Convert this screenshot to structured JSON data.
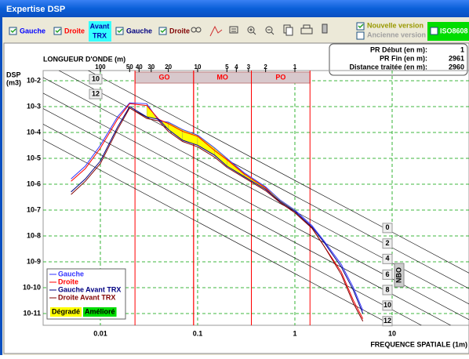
{
  "window": {
    "title": "Expertise DSP"
  },
  "toolbar": {
    "current": [
      "Gauche",
      "Droite"
    ],
    "before_badge": [
      "Avant",
      "TRX"
    ],
    "before": [
      "Gauche",
      "Droite"
    ],
    "options": [
      "Nouvelle version",
      "Ancienne version"
    ],
    "iso": "ISO8608"
  },
  "info": {
    "rows": [
      {
        "label": "PR Début (en m):",
        "value": 1
      },
      {
        "label": "PR Fin (en m):",
        "value": 2961
      },
      {
        "label": "Distance traitée (en m):",
        "value": 2960
      }
    ]
  },
  "chart_data": {
    "type": "line",
    "x_scale": "log",
    "y_scale": "log",
    "xlabel": "FREQUENCE SPATIALE (1m)",
    "ylabel": [
      "DSP",
      "(m3)"
    ],
    "x2label": "LONGUEUR D'ONDE (m)",
    "xlim": [
      0.00258,
      61.7
    ],
    "ylim": [
      3.51e-12,
      0.0248
    ],
    "xticks": [
      0.01,
      0.1,
      1,
      10
    ],
    "yticks": [
      {
        "value": 0.01,
        "label": "10-2"
      },
      {
        "value": 0.001,
        "label": "10-3"
      },
      {
        "value": 0.0001,
        "label": "10-4"
      },
      {
        "value": 1e-05,
        "label": "10-5"
      },
      {
        "value": 1e-06,
        "label": "10-6"
      },
      {
        "value": 1e-07,
        "label": "10-7"
      },
      {
        "value": 1e-08,
        "label": "10-8"
      },
      {
        "value": 1e-09,
        "label": "10-9"
      },
      {
        "value": 1e-10,
        "label": "10-10"
      },
      {
        "value": 1e-11,
        "label": "10-11"
      }
    ],
    "x2ticks": [
      100,
      50,
      40,
      30,
      20,
      10,
      5,
      4,
      3,
      2,
      1
    ],
    "grid": true,
    "legend": "lower left",
    "x": [
      0.005,
      0.007,
      0.01,
      0.015,
      0.02,
      0.03,
      0.04,
      0.05,
      0.07,
      0.1,
      0.15,
      0.2,
      0.3,
      0.5,
      0.7,
      1,
      1.5,
      2,
      3,
      4,
      5
    ],
    "series": [
      {
        "name": "Gauche",
        "color": "#3333ff",
        "values": [
          1.6e-06,
          5e-06,
          3.2e-05,
          0.0004,
          0.0014,
          0.0013,
          0.00028,
          0.00025,
          0.00013,
          7.9e-05,
          2.5e-05,
          1e-05,
          2.8e-06,
          7.9e-07,
          2.5e-07,
          1e-07,
          2.5e-08,
          6.3e-09,
          7.9e-10,
          1e-10,
          1.3e-11
        ]
      },
      {
        "name": "Droite",
        "color": "#ff0000",
        "values": [
          1.3e-06,
          4e-06,
          2.5e-05,
          0.00032,
          0.0013,
          0.0011,
          0.00032,
          0.00022,
          0.00011,
          7.1e-05,
          2e-05,
          8.9e-06,
          2.5e-06,
          7.1e-07,
          2e-07,
          7.9e-08,
          2e-08,
          4e-09,
          4e-10,
          3.2e-11,
          6.3e-12
        ]
      },
      {
        "name": "Gauche Avant TRX",
        "color": "#000080",
        "values": [
          5e-07,
          1.6e-06,
          7.9e-06,
          0.00016,
          0.001,
          0.0004,
          0.00032,
          0.00013,
          5e-05,
          3.2e-05,
          1.3e-05,
          5e-06,
          2e-06,
          6.3e-07,
          2.2e-07,
          8.9e-08,
          2.2e-08,
          5.6e-09,
          6.3e-10,
          7.9e-11,
          1e-11
        ]
      },
      {
        "name": "Droite Avant TRX",
        "color": "#800000",
        "values": [
          4e-07,
          1.3e-06,
          6.3e-06,
          0.00013,
          0.00089,
          0.00035,
          0.00028,
          0.00011,
          4.5e-05,
          2.8e-05,
          1.1e-05,
          4.5e-06,
          1.8e-06,
          5.6e-07,
          2e-07,
          7.9e-08,
          2e-08,
          4e-09,
          3.2e-10,
          2.5e-11,
          5e-12
        ]
      }
    ],
    "fills": [
      {
        "name": "Dégradé",
        "color": "#ffff00"
      },
      {
        "name": "Amélioré",
        "color": "#00dd00"
      }
    ],
    "bands": [
      {
        "label": "GO",
        "from": 0.0227,
        "to": 0.0909
      },
      {
        "label": "MO",
        "from": 0.0909,
        "to": 0.357
      },
      {
        "label": "PO",
        "from": 0.357,
        "to": 1.43
      }
    ],
    "iso_lines": [
      {
        "label": "0",
        "value": 1.4e-06
      },
      {
        "label": "2",
        "value": 3.5e-07
      },
      {
        "label": "4",
        "value": 8.9e-08
      },
      {
        "label": "6",
        "value": 2.2e-08
      },
      {
        "label": "8",
        "value": 5.6e-09
      },
      {
        "label": "10",
        "value": 1.4e-09
      },
      {
        "label": "12",
        "value": 3.5e-10
      }
    ],
    "nbo": "NBO"
  }
}
